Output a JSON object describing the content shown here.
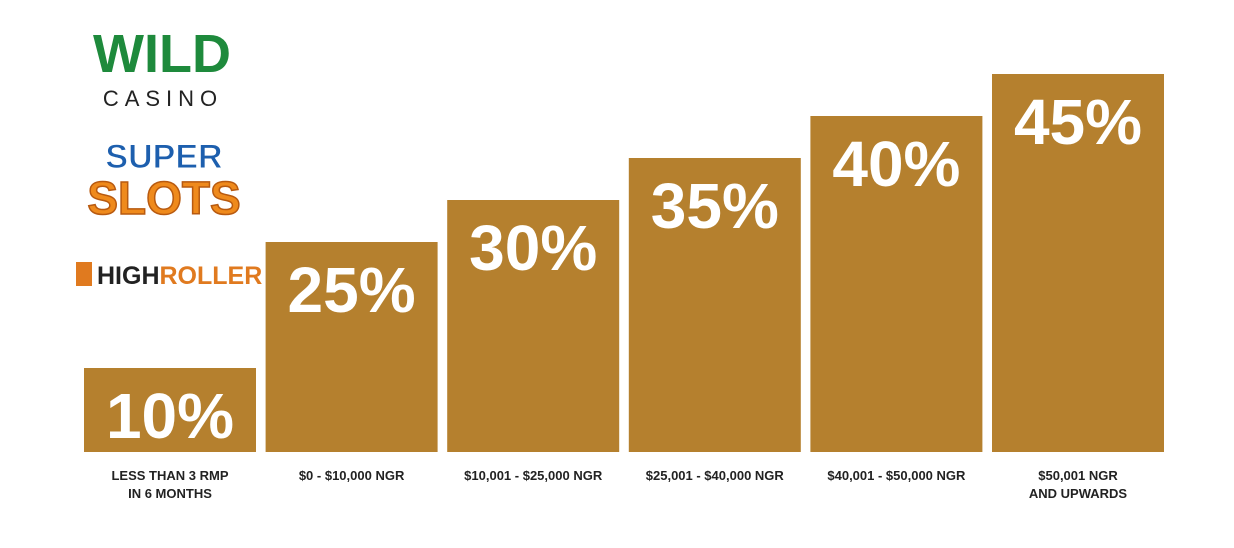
{
  "brands": {
    "wild": [
      "WILD",
      "CASINO"
    ],
    "super": [
      "SUPER",
      "SLOTS"
    ],
    "high": [
      "HIGH",
      "ROLLER"
    ]
  },
  "chart_data": {
    "type": "bar",
    "categories": [
      [
        "LESS THAN 3 RMP",
        "IN 6 MONTHS"
      ],
      [
        "$0 - $10,000 NGR"
      ],
      [
        "$10,001 - $25,000 NGR"
      ],
      [
        "$25,001 - $40,000 NGR"
      ],
      [
        "$40,001 - $50,000 NGR"
      ],
      [
        "$50,001 NGR",
        "AND UPWARDS"
      ]
    ],
    "values": [
      10,
      25,
      30,
      35,
      40,
      45
    ],
    "value_labels": [
      "10%",
      "25%",
      "30%",
      "35%",
      "40%",
      "45%"
    ],
    "color": "#b5802e"
  }
}
